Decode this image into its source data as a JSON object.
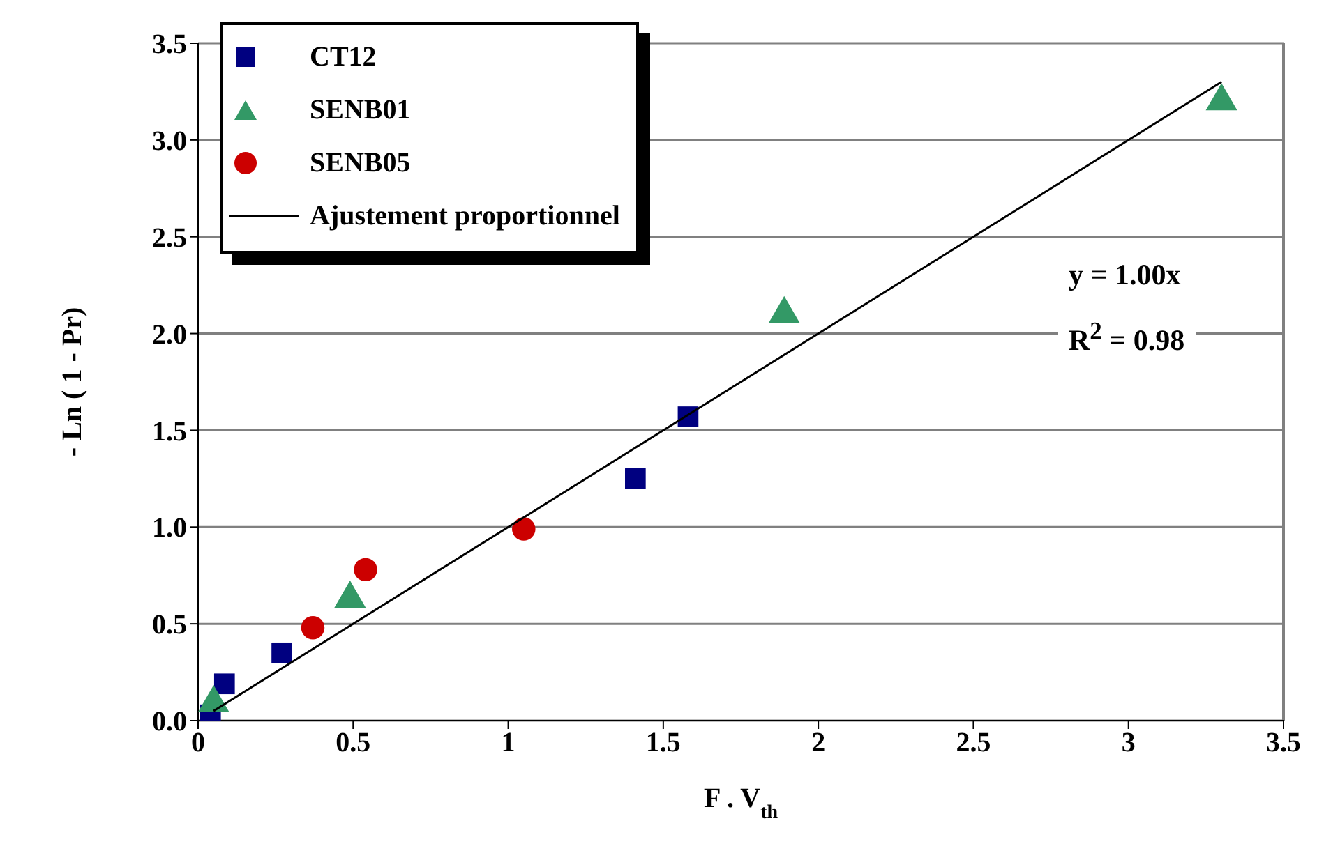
{
  "chart_data": {
    "type": "scatter",
    "xlabel": "F . V$_{th}$",
    "ylabel": "- Ln ( 1 - Pr)",
    "xlim": [
      0,
      3.5
    ],
    "xticks": [
      0,
      0.5,
      1,
      1.5,
      2,
      2.5,
      3,
      3.5
    ],
    "ylim": [
      0,
      3.5
    ],
    "yticks": [
      {
        "value": 0,
        "label": "0.0"
      },
      {
        "value": 0.5,
        "label": "0.5"
      },
      {
        "value": 1,
        "label": "1.0"
      },
      {
        "value": 1.5,
        "label": "1.5"
      },
      {
        "value": 2,
        "label": "2.0"
      },
      {
        "value": 2.5,
        "label": "2.5"
      },
      {
        "value": 3,
        "label": "3.0"
      },
      {
        "value": 3.5,
        "label": "3.5"
      }
    ],
    "grid": "y",
    "legend": "top left",
    "annotations": [
      "y = 1.00x",
      "R$^{2}$ = 0.98"
    ],
    "series": [
      {
        "name": "CT12",
        "color": "#000080",
        "marker": "square",
        "x": [
          0.04,
          0.085,
          0.27,
          1.41,
          1.58
        ],
        "values": [
          0.03,
          0.19,
          0.35,
          1.25,
          1.57
        ]
      },
      {
        "name": "SENB01",
        "color": "#339966",
        "marker": "triangle",
        "x": [
          0.05,
          0.49,
          1.89,
          3.3
        ],
        "values": [
          0.09,
          0.63,
          2.1,
          3.2
        ]
      },
      {
        "name": "SENB05",
        "color": "#cc0000",
        "marker": "circle",
        "x": [
          0.37,
          0.54,
          1.05
        ],
        "values": [
          0.48,
          0.78,
          0.99
        ]
      },
      {
        "name": "Ajustement proportionnel",
        "type": "line",
        "color": "#000000",
        "x": [
          0.05,
          3.3
        ],
        "values": [
          0.05,
          3.3
        ]
      }
    ]
  }
}
